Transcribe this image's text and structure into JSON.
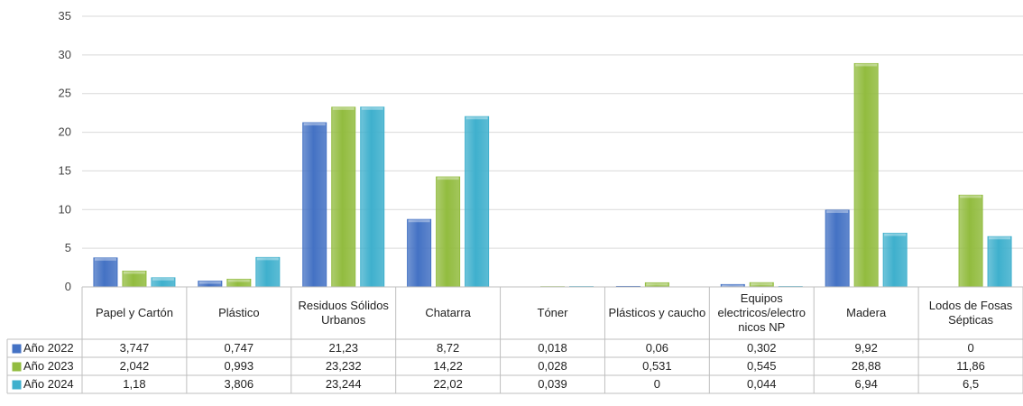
{
  "chart_data": {
    "type": "bar",
    "categories": [
      [
        "Papel y Cartón"
      ],
      [
        "Plástico"
      ],
      [
        "Residuos Sólidos",
        "Urbanos"
      ],
      [
        "Chatarra"
      ],
      [
        "Tóner"
      ],
      [
        "Plásticos y caucho"
      ],
      [
        "Equipos",
        "electricos/electro",
        "nicos NP"
      ],
      [
        "Madera"
      ],
      [
        "Lodos de Fosas",
        "Sépticas"
      ]
    ],
    "series": [
      {
        "name": "Año 2022",
        "color": "#4472c4",
        "values": [
          3.747,
          0.747,
          21.23,
          8.72,
          0.018,
          0.06,
          0.302,
          9.92,
          0
        ],
        "labels": [
          "3,747",
          "0,747",
          "21,23",
          "8,72",
          "0,018",
          "0,06",
          "0,302",
          "9,92",
          "0"
        ]
      },
      {
        "name": "Año 2023",
        "color": "#92bc3f",
        "values": [
          2.042,
          0.993,
          23.232,
          14.22,
          0.028,
          0.531,
          0.545,
          28.88,
          11.86
        ],
        "labels": [
          "2,042",
          "0,993",
          "23,232",
          "14,22",
          "0,028",
          "0,531",
          "0,545",
          "28,88",
          "11,86"
        ]
      },
      {
        "name": "Año 2024",
        "color": "#3fb0cd",
        "values": [
          1.18,
          3.806,
          23.244,
          22.02,
          0.039,
          0,
          0.044,
          6.94,
          6.5
        ],
        "labels": [
          "1,18",
          "3,806",
          "23,244",
          "22,02",
          "0,039",
          "0",
          "0,044",
          "6,94",
          "6,5"
        ]
      }
    ],
    "yticks": [
      "0",
      "5",
      "10",
      "15",
      "20",
      "25",
      "30",
      "35"
    ],
    "ylim": [
      0,
      35
    ],
    "grid": true,
    "legend": "data-table"
  }
}
